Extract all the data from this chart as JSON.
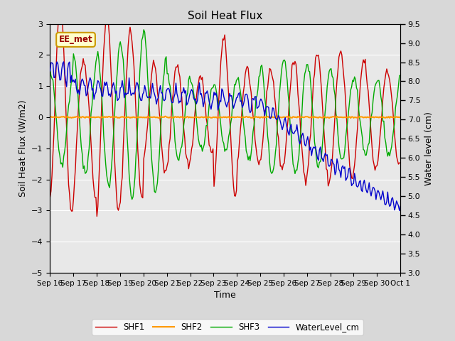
{
  "title": "Soil Heat Flux",
  "xlabel": "Time",
  "ylabel_left": "Soil Heat Flux (W/m2)",
  "ylabel_right": "Water level (cm)",
  "ylim_left": [
    -5.0,
    3.0
  ],
  "ylim_right": [
    3.0,
    9.5
  ],
  "yticks_left": [
    -5.0,
    -4.0,
    -3.0,
    -2.0,
    -1.0,
    0.0,
    1.0,
    2.0,
    3.0
  ],
  "yticks_right": [
    3.0,
    3.5,
    4.0,
    4.5,
    5.0,
    5.5,
    6.0,
    6.5,
    7.0,
    7.5,
    8.0,
    8.5,
    9.0,
    9.5
  ],
  "colors": {
    "SHF1": "#cc0000",
    "SHF2": "#ff9900",
    "SHF3": "#00aa00",
    "WaterLevel_cm": "#0000cc"
  },
  "legend_labels": [
    "SHF1",
    "SHF2",
    "SHF3",
    "WaterLevel_cm"
  ],
  "annotation_text": "EE_met",
  "annotation_text_color": "#990000",
  "annotation_edge_color": "#cc9900",
  "annotation_face_color": "#ffffcc",
  "background_color": "#d8d8d8",
  "plot_bg_color": "#e8e8e8",
  "grid_color": "#ffffff",
  "n_points": 360,
  "x_tick_labels": [
    "Sep 16",
    "Sep 17",
    "Sep 18",
    "Sep 19",
    "Sep 20",
    "Sep 21",
    "Sep 22",
    "Sep 23",
    "Sep 24",
    "Sep 25",
    "Sep 26",
    "Sep 27",
    "Sep 28",
    "Sep 29",
    "Sep 30",
    "Oct 1"
  ],
  "line_width": 1.0
}
